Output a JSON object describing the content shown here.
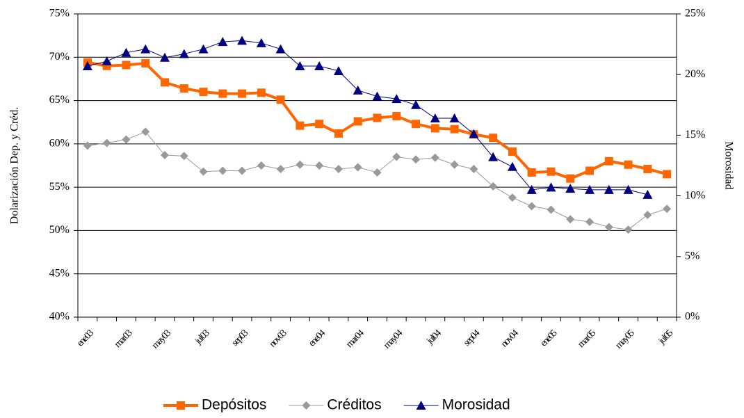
{
  "chart_data": {
    "type": "line",
    "ylabel": "Dolarización Dep. y Créd.",
    "y2label": "Morosidad",
    "categories": [
      "ene03",
      null,
      "mar03",
      null,
      "may03",
      null,
      "jul03",
      null,
      "sep03",
      null,
      "nov03",
      null,
      "ene04",
      null,
      "mar04",
      null,
      "may04",
      null,
      "jul04",
      null,
      "sep04",
      null,
      "nov04",
      null,
      "ene05",
      null,
      "mar05",
      null,
      "may05",
      null,
      "jul05"
    ],
    "ylim": [
      40,
      75
    ],
    "yticks": [
      {
        "value": 40,
        "label": "40%"
      },
      {
        "value": 45,
        "label": "45%"
      },
      {
        "value": 50,
        "label": "50%"
      },
      {
        "value": 55,
        "label": "55%"
      },
      {
        "value": 60,
        "label": "60%"
      },
      {
        "value": 65,
        "label": "65%"
      },
      {
        "value": 70,
        "label": "70%"
      },
      {
        "value": 75,
        "label": "75%"
      }
    ],
    "y2lim": [
      0,
      25
    ],
    "y2ticks": [
      {
        "value": 0,
        "label": "0%"
      },
      {
        "value": 5,
        "label": "5%"
      },
      {
        "value": 10,
        "label": "10%"
      },
      {
        "value": 15,
        "label": "15%"
      },
      {
        "value": 20,
        "label": "20%"
      },
      {
        "value": 25,
        "label": "25%"
      }
    ],
    "grid": true,
    "legend": "bottom",
    "series": [
      {
        "name": "Depósitos",
        "color": "#ff6600",
        "marker": "square",
        "line_width": 4,
        "values": [
          69.4,
          69.0,
          69.1,
          69.3,
          67.1,
          66.4,
          66.0,
          65.8,
          65.8,
          65.9,
          65.1,
          62.1,
          62.3,
          61.2,
          62.6,
          63.0,
          63.2,
          62.3,
          61.8,
          61.7,
          61.1,
          60.7,
          59.1,
          56.7,
          56.8,
          56.0,
          56.9,
          58.0,
          57.6,
          57.1,
          56.5
        ]
      },
      {
        "name": "Créditos",
        "color": "#999999",
        "marker": "diamond",
        "line_width": 1,
        "values": [
          59.8,
          60.1,
          60.5,
          61.4,
          58.7,
          58.6,
          56.8,
          56.9,
          56.9,
          57.5,
          57.1,
          57.6,
          57.5,
          57.1,
          57.3,
          56.7,
          58.5,
          58.2,
          58.4,
          57.6,
          57.1,
          55.1,
          53.8,
          52.8,
          52.4,
          51.3,
          51.0,
          50.4,
          50.1,
          51.8,
          52.5
        ]
      },
      {
        "name": "Morosidad",
        "color": "#000080",
        "marker": "triangle",
        "line_width": 1,
        "axis": "y2",
        "values": [
          20.7,
          21.1,
          21.8,
          22.1,
          21.4,
          21.7,
          22.1,
          22.7,
          22.8,
          22.6,
          22.1,
          20.7,
          20.7,
          20.3,
          18.7,
          18.2,
          18.0,
          17.5,
          16.4,
          16.4,
          15.1,
          13.2,
          12.4,
          10.5,
          10.7,
          10.6,
          10.5,
          10.5,
          10.5,
          10.1,
          null
        ]
      }
    ]
  }
}
